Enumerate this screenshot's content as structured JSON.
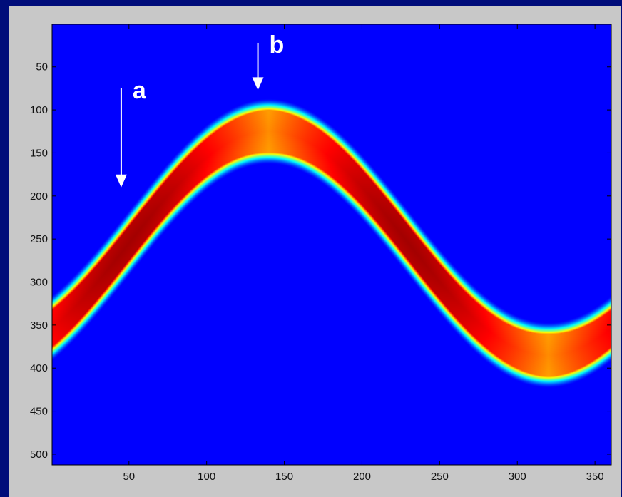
{
  "chart_data": {
    "type": "heatmap",
    "title": "",
    "xlabel": "",
    "ylabel": "",
    "xlim": [
      1,
      360
    ],
    "ylim": [
      512,
      1
    ],
    "y_reversed": true,
    "x_ticks": [
      50,
      100,
      150,
      200,
      250,
      300,
      350
    ],
    "y_ticks": [
      50,
      100,
      150,
      200,
      250,
      300,
      350,
      400,
      450,
      500
    ],
    "colormap": "jet",
    "background_color": "#00008f",
    "band": {
      "shape": "sinusoid",
      "center_row_at_x1": 330,
      "period": 360,
      "center_peak": [
        140,
        125
      ],
      "center_trough": [
        320,
        385
      ],
      "thickness": 60,
      "bright_at_extremes": "yellow",
      "bright_on_slopes": "red"
    },
    "annotations": [
      {
        "text": "a",
        "arrow_x": 45,
        "arrow_from_y": 75,
        "arrow_to_y": 190
      },
      {
        "text": "b",
        "arrow_x": 133,
        "arrow_from_y": 22,
        "arrow_to_y": 77
      }
    ]
  }
}
